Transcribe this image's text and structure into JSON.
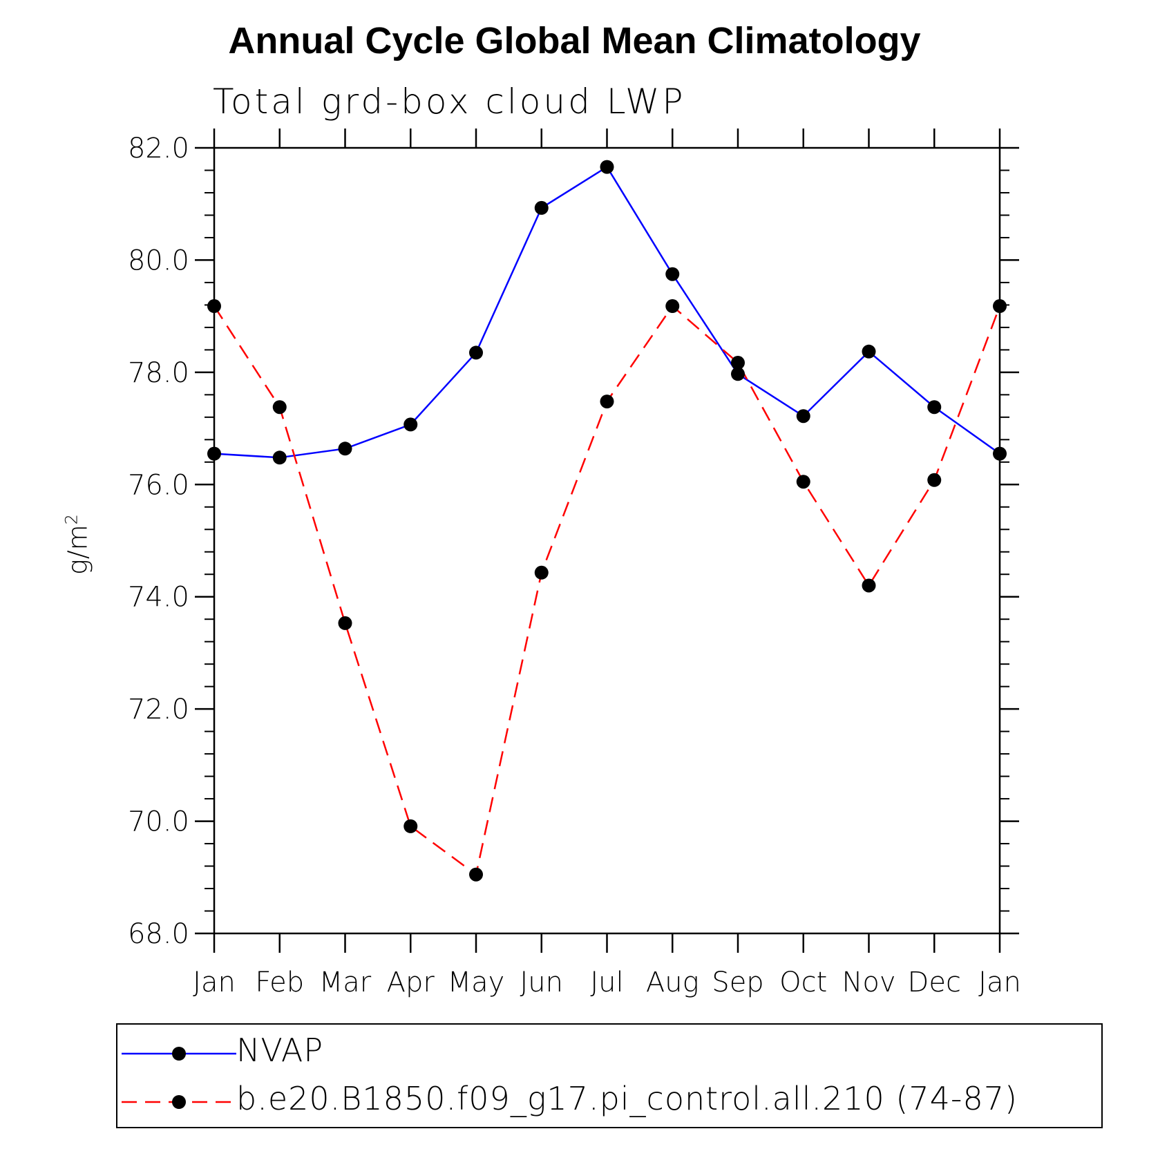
{
  "chart_data": {
    "type": "line",
    "title": "Annual Cycle Global Mean Climatology",
    "subtitle": "Total grd-box cloud LWP",
    "ylabel": "g/m",
    "ylabel_sup": "2",
    "xlabel": "",
    "categories": [
      "Jan",
      "Feb",
      "Mar",
      "Apr",
      "May",
      "Jun",
      "Jul",
      "Aug",
      "Sep",
      "Oct",
      "Nov",
      "Dec",
      "Jan"
    ],
    "ylim": [
      68,
      82
    ],
    "yticks": [
      68,
      70,
      72,
      74,
      76,
      78,
      80,
      82
    ],
    "ytick_labels": [
      "68.0",
      "70.0",
      "72.0",
      "74.0",
      "76.0",
      "78.0",
      "80.0",
      "82.0"
    ],
    "series": [
      {
        "name": "NVAP",
        "color": "#0000ff",
        "style": "solid",
        "values": [
          76.55,
          76.48,
          76.64,
          77.07,
          78.35,
          80.93,
          81.66,
          79.75,
          77.97,
          77.22,
          78.37,
          77.38,
          76.55
        ]
      },
      {
        "name": "b.e20.B1850.f09_g17.pi_control.all.210 (74-87)",
        "color": "#ff0000",
        "style": "dashed",
        "values": [
          79.18,
          77.38,
          73.53,
          69.91,
          69.05,
          74.43,
          77.48,
          79.18,
          78.17,
          76.05,
          74.2,
          76.08,
          79.18
        ]
      }
    ],
    "legend": {
      "position": "bottom",
      "entries": [
        "NVAP",
        "b.e20.B1850.f09_g17.pi_control.all.210 (74-87)"
      ]
    },
    "grid": false
  }
}
